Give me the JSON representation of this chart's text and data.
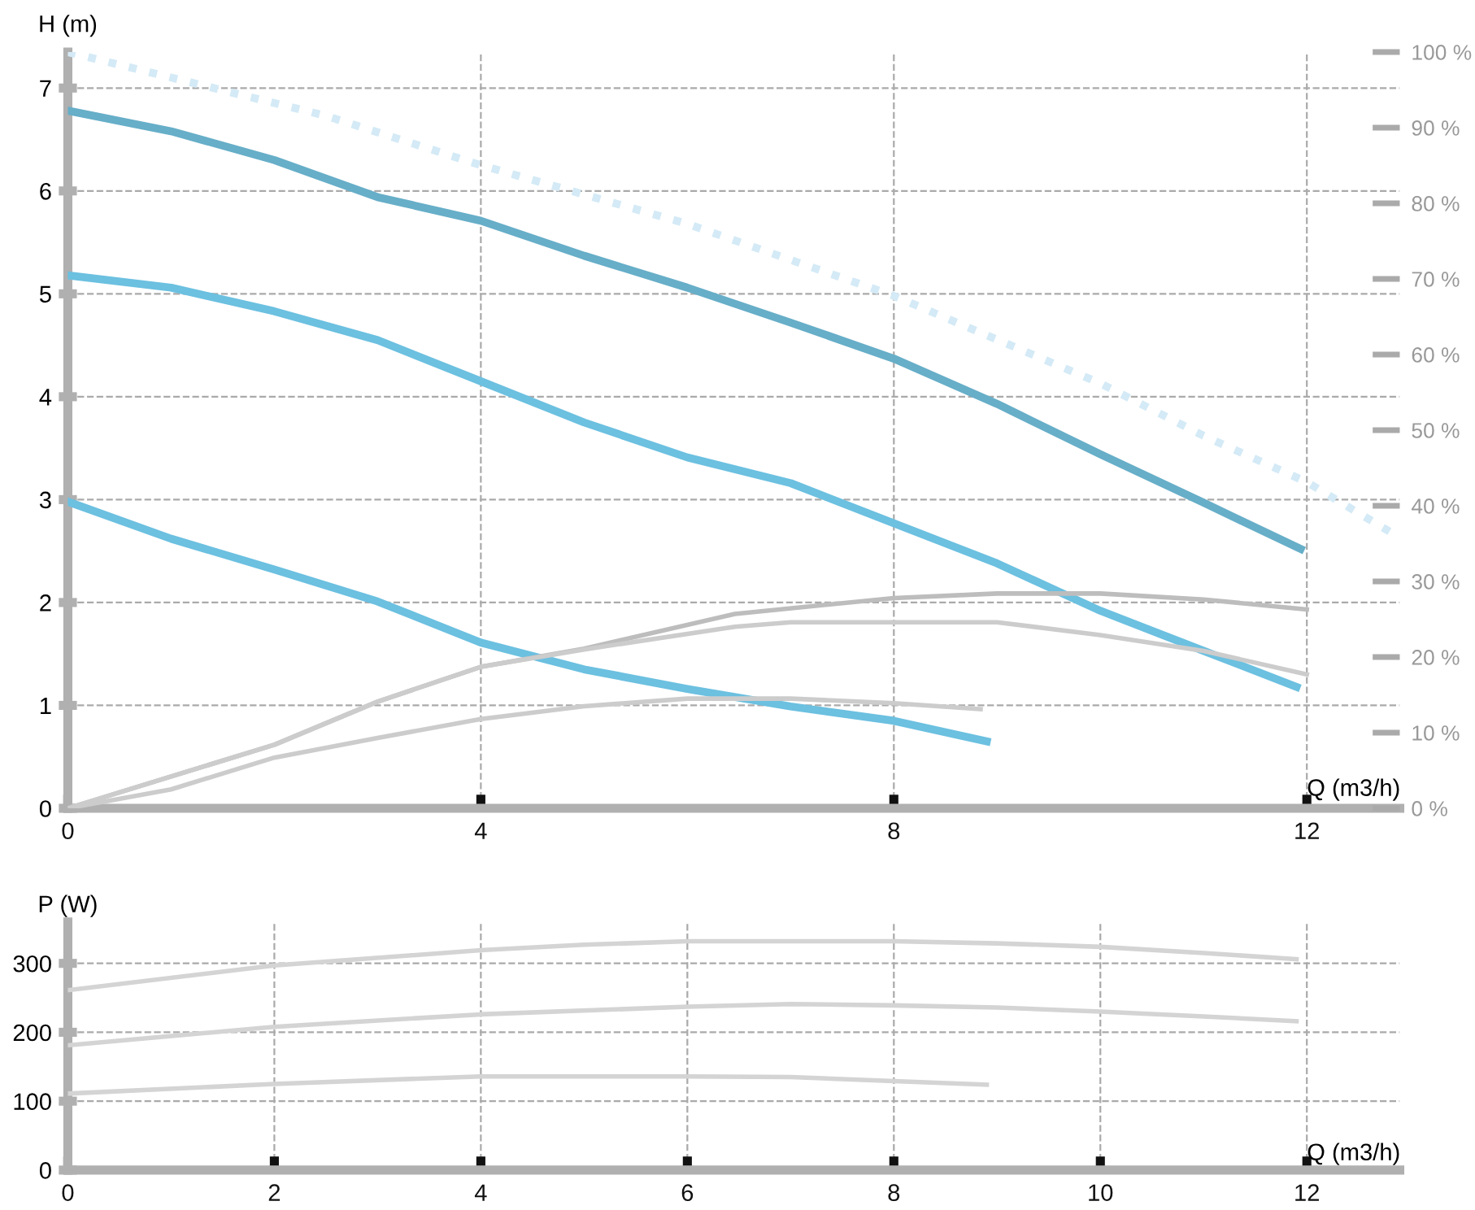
{
  "chart_data": [
    {
      "type": "line",
      "xlabel": "Q (m3/h)",
      "ylabel": "H (m)",
      "xlim": [
        0,
        12.9
      ],
      "ylim": [
        0,
        7.35
      ],
      "xticks": [
        0,
        4,
        8,
        12
      ],
      "yticks": [
        0,
        1,
        2,
        3,
        4,
        5,
        6,
        7
      ],
      "y2lim": [
        0,
        100
      ],
      "y2ticks": [
        {
          "value": 0,
          "label": "0 %"
        },
        {
          "value": 10,
          "label": "10 %"
        },
        {
          "value": 20,
          "label": "20 %"
        },
        {
          "value": 30,
          "label": "30 %"
        },
        {
          "value": 40,
          "label": "40 %"
        },
        {
          "value": 50,
          "label": "50 %"
        },
        {
          "value": 60,
          "label": "60 %"
        },
        {
          "value": 70,
          "label": "70 %"
        },
        {
          "value": 80,
          "label": "80 %"
        },
        {
          "value": 90,
          "label": "90 %"
        },
        {
          "value": 100,
          "label": "100 %"
        }
      ],
      "grid": true,
      "legend": false,
      "series": [
        {
          "color": "#d4eaf6",
          "line_style": "dotted",
          "x": [
            0,
            2.5,
            4,
            6,
            8,
            10,
            11,
            12,
            12.8
          ],
          "values": [
            7.35,
            6.73,
            6.25,
            5.68,
            4.98,
            4.13,
            3.62,
            3.17,
            2.69
          ]
        },
        {
          "color": "#bdbdbd",
          "axis": "y2",
          "x": [
            0,
            1,
            2,
            3,
            4,
            5,
            6.46,
            8,
            9,
            10,
            11,
            12
          ],
          "values": [
            0,
            4.2,
            8.4,
            14.1,
            18.7,
            21.1,
            25.7,
            27.8,
            28.4,
            28.4,
            27.6,
            26.3
          ]
        },
        {
          "color": "#cccccc",
          "axis": "y2",
          "x": [
            0,
            1,
            2,
            3,
            4,
            5,
            6.46,
            7,
            8,
            9,
            10,
            11,
            12
          ],
          "values": [
            0,
            4.2,
            8.4,
            14.1,
            18.7,
            21,
            24,
            24.6,
            24.6,
            24.6,
            22.9,
            20.8,
            17.7
          ]
        },
        {
          "color": "#cccccc",
          "axis": "y2",
          "x": [
            0,
            1,
            2,
            3,
            4,
            5,
            6,
            7,
            8,
            8.84
          ],
          "values": [
            0,
            2.5,
            6.7,
            9.3,
            11.8,
            13.5,
            14.5,
            14.5,
            13.9,
            13.1
          ]
        },
        {
          "color": "#67aec8",
          "x": [
            0,
            1,
            2,
            3,
            4,
            5,
            6,
            7,
            8,
            9,
            10,
            11,
            11.94
          ],
          "values": [
            6.78,
            6.58,
            6.3,
            5.94,
            5.71,
            5.37,
            5.06,
            4.72,
            4.37,
            3.93,
            3.44,
            2.97,
            2.52
          ]
        },
        {
          "color": "#6cc0e0",
          "x": [
            0,
            1,
            2,
            3,
            4,
            5,
            6,
            7,
            8,
            9,
            10,
            11,
            11.9
          ],
          "values": [
            5.18,
            5.06,
            4.83,
            4.55,
            4.15,
            3.75,
            3.41,
            3.16,
            2.77,
            2.38,
            1.92,
            1.53,
            1.18
          ]
        },
        {
          "color": "#6cc0e0",
          "x": [
            0,
            1,
            2,
            3,
            4,
            5,
            6,
            7,
            8,
            8.9
          ],
          "values": [
            2.98,
            2.62,
            2.32,
            2.01,
            1.61,
            1.35,
            1.16,
            0.99,
            0.85,
            0.65
          ]
        }
      ]
    },
    {
      "type": "line",
      "xlabel": "Q (m3/h)",
      "ylabel": "P (W)",
      "xlim": [
        0,
        12.9
      ],
      "ylim": [
        0,
        360
      ],
      "xticks": [
        0,
        2,
        4,
        6,
        8,
        10,
        12
      ],
      "yticks": [
        0,
        100,
        200,
        300
      ],
      "grid": true,
      "legend": false,
      "series": [
        {
          "color": "#d4d4d4",
          "x": [
            0,
            2,
            4,
            5,
            6,
            8,
            9,
            10,
            11,
            11.9
          ],
          "values": [
            261,
            297,
            319,
            327,
            332,
            332,
            329,
            324,
            315,
            306
          ]
        },
        {
          "color": "#d4d4d4",
          "x": [
            0,
            2,
            4,
            6,
            7,
            8,
            9,
            10,
            11,
            11.9
          ],
          "values": [
            181,
            208,
            226,
            237,
            241,
            239,
            236,
            230,
            223,
            216
          ]
        },
        {
          "color": "#d4d4d4",
          "x": [
            0,
            2,
            4,
            6,
            7,
            8,
            8.9
          ],
          "values": [
            111,
            125,
            136,
            136,
            135,
            129,
            124
          ]
        }
      ]
    }
  ]
}
